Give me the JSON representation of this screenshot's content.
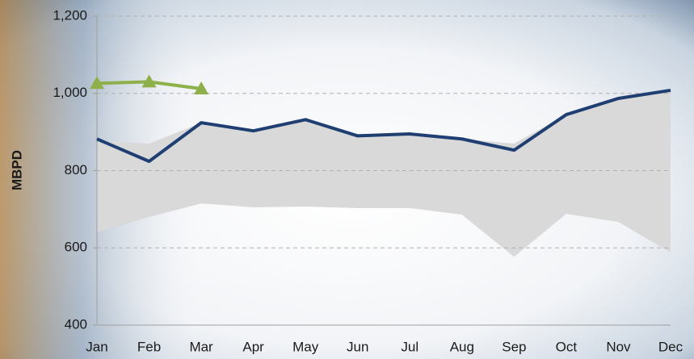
{
  "chart_data": {
    "type": "line",
    "ylabel": "MBPD",
    "categories": [
      "Jan",
      "Feb",
      "Mar",
      "Apr",
      "May",
      "Jun",
      "Jul",
      "Aug",
      "Sep",
      "Oct",
      "Nov",
      "Dec"
    ],
    "ylim": [
      400,
      1200
    ],
    "yticks": [
      400,
      600,
      800,
      {
        "value": 1000,
        "label": "1,000"
      },
      {
        "value": 1200,
        "label": "1,200"
      }
    ],
    "grid": true,
    "band": {
      "color": "#d9d9d9",
      "low": [
        640,
        680,
        715,
        705,
        707,
        703,
        703,
        686,
        577,
        688,
        667,
        588
      ],
      "high": [
        876,
        870,
        924,
        903,
        932,
        890,
        895,
        882,
        870,
        945,
        987,
        1008
      ]
    },
    "series": [
      {
        "color": "#1f3f73",
        "marker": "none",
        "values": [
          882,
          824,
          924,
          903,
          932,
          890,
          895,
          882,
          853,
          945,
          987,
          1008
        ]
      },
      {
        "color": "#8db04a",
        "marker": "triangle",
        "values": [
          1026,
          1030,
          1012,
          null,
          null,
          null,
          null,
          null,
          null,
          null,
          null,
          null
        ]
      }
    ]
  }
}
